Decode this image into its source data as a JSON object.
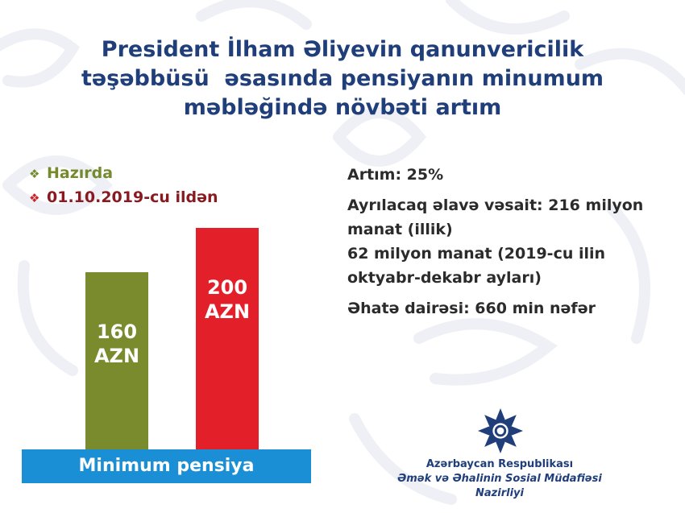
{
  "title_lines": [
    "President İlham Əliyevin qanunvericilik",
    "təşəbbüsü  əsasında pensiyanın minumum",
    "məbləğində növbəti artım"
  ],
  "legend": [
    {
      "bullet": "❖",
      "label": "Hazırda",
      "color": "#7a8b2e"
    },
    {
      "bullet": "❖",
      "label": "01.10.2019-cu ildən",
      "color": "#e3202a"
    }
  ],
  "info": {
    "increase": "Artım: 25%",
    "funds_line1": "Ayrılacaq əlavə vəsait: 216 milyon",
    "funds_line2": "manat (illik)",
    "funds_line3": "62 milyon manat (2019-cu ilin",
    "funds_line4": "oktyabr-dekabr ayları)",
    "coverage": "Əhatə dairəsi: 660 min nəfər"
  },
  "chart_data": {
    "type": "bar",
    "categories": [
      "Hazırda",
      "01.10.2019-cu ildən"
    ],
    "values": [
      160,
      200
    ],
    "value_labels": [
      [
        "160",
        "AZN"
      ],
      [
        "200",
        "AZN"
      ]
    ],
    "colors": [
      "#7a8b2e",
      "#e3202a"
    ],
    "title": "",
    "xlabel": "Minimum pensiya",
    "ylabel": "",
    "ylim": [
      0,
      200
    ],
    "grid": false
  },
  "ministry": {
    "line1": "Azərbaycan Respublikası",
    "line2": "Əmək və Əhalinin Sosial Müdafiəsi Nazirliyi"
  }
}
